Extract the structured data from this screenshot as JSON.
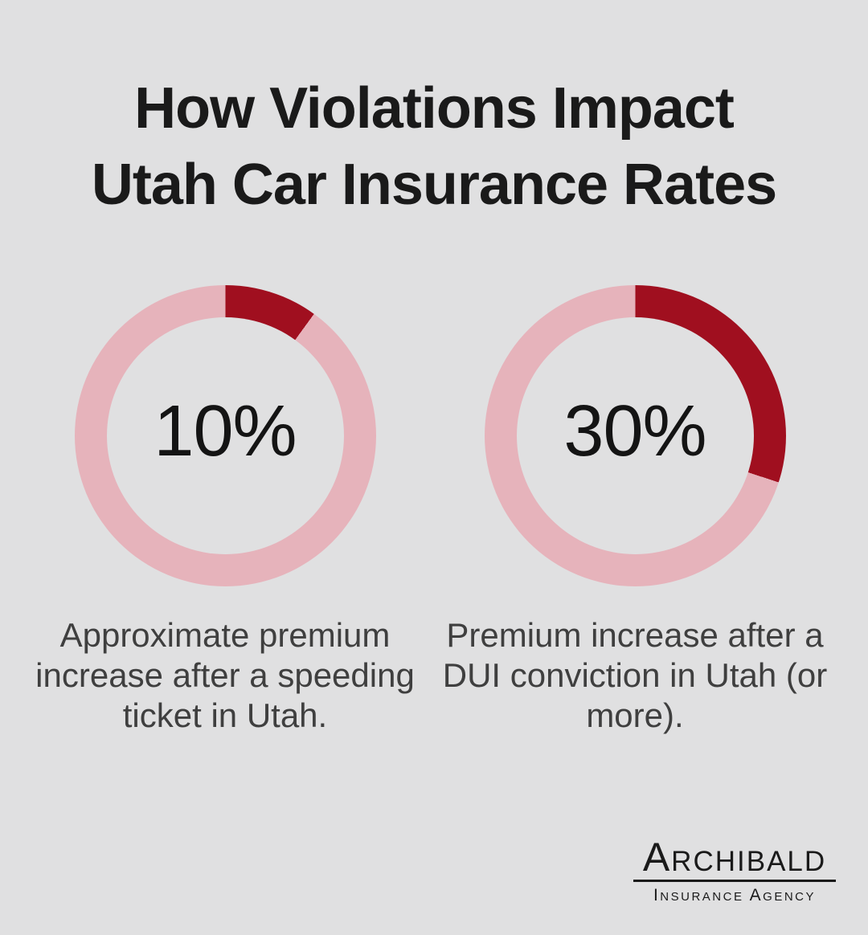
{
  "page": {
    "title_line1": "How Violations Impact",
    "title_line2": "Utah Car Insurance Rates",
    "colors": {
      "background": "#e0e0e1",
      "donut_fill": "#a00f1f",
      "donut_track": "#e6b3bb",
      "title_text": "#1a1a1a",
      "value_text": "#141414",
      "caption_text": "#3f3f3f",
      "logo_text": "#1a1a1a"
    }
  },
  "chart_data": [
    {
      "type": "donut",
      "value_percent": 10,
      "label": "10%",
      "start_angle_deg": 0,
      "direction": "clockwise",
      "caption": "Approximate premium increase after a speeding ticket in Utah.",
      "caption_lines": [
        "Approximate premium",
        "increase after a speeding",
        "ticket in Utah."
      ]
    },
    {
      "type": "donut",
      "value_percent": 30,
      "label": "30%",
      "start_angle_deg": 0,
      "direction": "clockwise",
      "caption": "Premium increase after a DUI conviction in Utah (or more).",
      "caption_lines": [
        "Premium increase after a",
        "DUI conviction in Utah (or",
        "more)."
      ]
    }
  ],
  "logo": {
    "name": "Archibald",
    "tagline": "Insurance Agency"
  }
}
